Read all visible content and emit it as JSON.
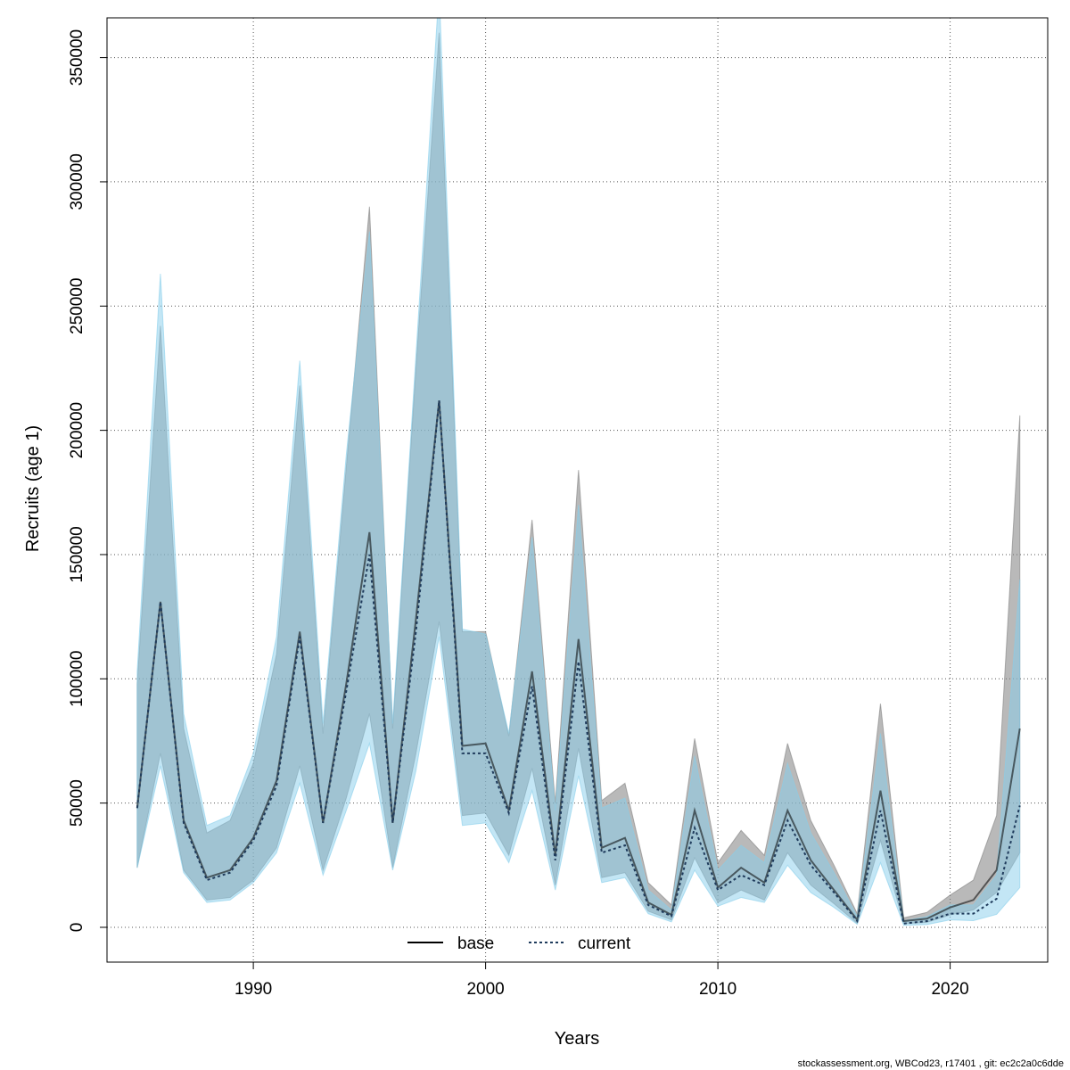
{
  "chart_data": {
    "type": "line",
    "title": "",
    "xlabel": "Years",
    "ylabel": "Recruits (age 1)",
    "xlim": [
      1983.7,
      2024.2
    ],
    "ylim": [
      -14000,
      366000
    ],
    "x_ticks": [
      1990,
      2000,
      2010,
      2020
    ],
    "y_ticks": [
      0,
      50000,
      100000,
      150000,
      200000,
      250000,
      300000,
      350000
    ],
    "grid": true,
    "legend_position": "bottom-center",
    "x": [
      1985,
      1986,
      1987,
      1988,
      1989,
      1990,
      1991,
      1992,
      1993,
      1994,
      1995,
      1996,
      1997,
      1998,
      1999,
      2000,
      2001,
      2002,
      2003,
      2004,
      2005,
      2006,
      2007,
      2008,
      2009,
      2010,
      2011,
      2012,
      2013,
      2014,
      2015,
      2016,
      2017,
      2018,
      2019,
      2020,
      2021,
      2022,
      2023
    ],
    "series": [
      {
        "name": "base",
        "line_style": "solid",
        "line_color": "#000000",
        "band_color": "#808080",
        "values": [
          48000,
          131000,
          43000,
          20000,
          23000,
          36000,
          59000,
          119000,
          42000,
          98000,
          159000,
          42000,
          124000,
          212000,
          73000,
          74000,
          47000,
          103000,
          29000,
          116000,
          32000,
          36000,
          10000,
          5000,
          47000,
          16000,
          24000,
          18000,
          47000,
          27000,
          15000,
          3000,
          55000,
          2500,
          3500,
          8000,
          11000,
          23000,
          80000
        ],
        "lower": [
          24000,
          70000,
          23000,
          11000,
          12000,
          19000,
          32000,
          65000,
          23000,
          52000,
          86000,
          24000,
          70000,
          123000,
          45000,
          46000,
          29000,
          64000,
          17000,
          72000,
          20000,
          22000,
          6500,
          3000,
          28000,
          10000,
          15000,
          11000,
          30000,
          17000,
          9500,
          1600,
          35000,
          1500,
          2000,
          5000,
          7000,
          14000,
          30000
        ],
        "upper": [
          98000,
          242000,
          80000,
          38000,
          43000,
          66000,
          110000,
          218000,
          78000,
          185000,
          290000,
          80000,
          225000,
          360000,
          119000,
          119000,
          77000,
          164000,
          50000,
          184000,
          51000,
          58000,
          18000,
          9000,
          76000,
          26000,
          39000,
          29000,
          74000,
          43000,
          25000,
          5500,
          90000,
          3800,
          6000,
          13000,
          19000,
          45000,
          206000
        ]
      },
      {
        "name": "current",
        "line_style": "dotted",
        "line_color": "#1f3b5c",
        "band_color": "#87ceeb",
        "values": [
          48000,
          131000,
          42000,
          19000,
          22000,
          35000,
          57000,
          117000,
          42000,
          95000,
          150000,
          42000,
          119000,
          212000,
          70000,
          70000,
          46000,
          97000,
          27000,
          107000,
          30000,
          33000,
          9000,
          4500,
          40000,
          15000,
          21000,
          17000,
          43000,
          25000,
          14000,
          2500,
          47000,
          1500,
          2500,
          5500,
          5500,
          11500,
          49000
        ],
        "lower": [
          24000,
          65000,
          22000,
          10000,
          11000,
          18000,
          30000,
          58000,
          21000,
          47000,
          74000,
          23000,
          63000,
          117000,
          41000,
          42000,
          26000,
          55000,
          15000,
          61000,
          18000,
          20000,
          5500,
          2200,
          23000,
          8500,
          12000,
          10000,
          25000,
          14000,
          8000,
          1200,
          26000,
          800,
          1100,
          3000,
          2700,
          5200,
          16000
        ],
        "upper": [
          103000,
          263000,
          86000,
          41000,
          45000,
          70000,
          117000,
          228000,
          82000,
          190000,
          280000,
          82000,
          230000,
          378000,
          120000,
          118000,
          78000,
          157000,
          47000,
          170000,
          48000,
          52000,
          15000,
          7000,
          69000,
          23000,
          33000,
          26000,
          66000,
          38000,
          22000,
          4300,
          78000,
          2600,
          4300,
          9000,
          9000,
          21000,
          140000
        ]
      }
    ]
  },
  "footer": {
    "text": "stockassessment.org, WBCod23, r17401 , git: ec2c2a0c6dde"
  }
}
